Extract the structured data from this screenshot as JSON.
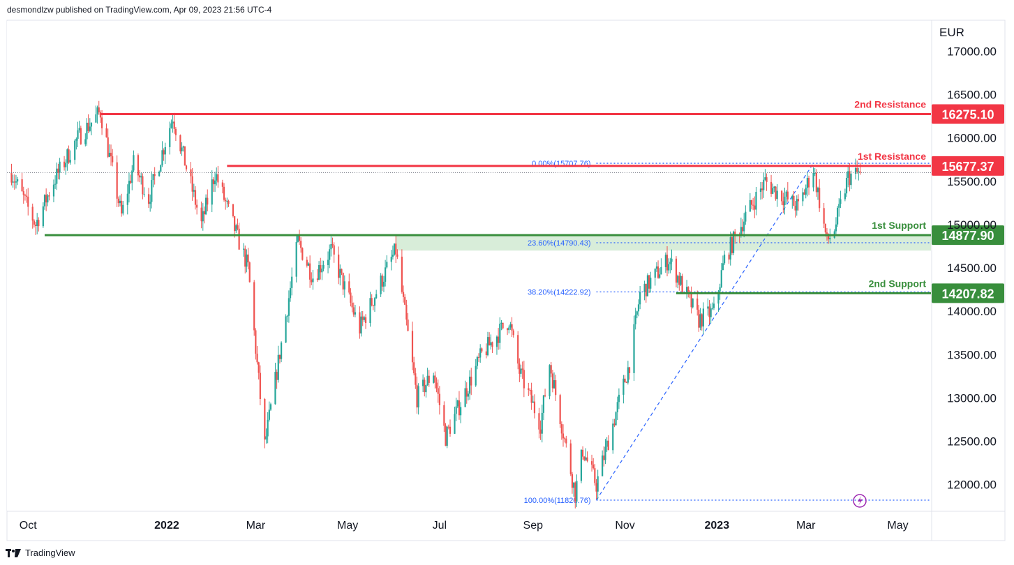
{
  "header": {
    "publisher_line": "desmondlzw published on TradingView.com, Apr 09, 2023 21:56 UTC-4"
  },
  "footer": {
    "brand": "TradingView"
  },
  "colors": {
    "up": "#26a69a",
    "down": "#ef5350",
    "resistance": "#f23645",
    "support": "#388e3c",
    "fib": "#2962ff",
    "zone": "#c8e6c9",
    "grid_border": "#e0e3eb"
  },
  "chart_data": {
    "type": "candlestick",
    "currency": "EUR",
    "ylim": [
      11700,
      17350
    ],
    "y_ticks": [
      "17000.00",
      "16500.00",
      "16000.00",
      "15500.00",
      "15000.00",
      "14500.00",
      "14000.00",
      "13500.00",
      "13000.00",
      "12500.00",
      "12000.00"
    ],
    "x_labels": [
      {
        "label": "Oct",
        "bold": false
      },
      {
        "label": "2022",
        "bold": true
      },
      {
        "label": "Mar",
        "bold": false
      },
      {
        "label": "May",
        "bold": false
      },
      {
        "label": "Jul",
        "bold": false
      },
      {
        "label": "Sep",
        "bold": false
      },
      {
        "label": "Nov",
        "bold": false
      },
      {
        "label": "2023",
        "bold": true
      },
      {
        "label": "Mar",
        "bold": false
      },
      {
        "label": "May",
        "bold": false
      }
    ],
    "price_path": [
      [
        "2021-09-20",
        15600
      ],
      [
        "2021-10-06",
        15000
      ],
      [
        "2021-10-18",
        15500
      ],
      [
        "2021-11-03",
        16000
      ],
      [
        "2021-11-18",
        16300
      ],
      [
        "2021-12-02",
        15100
      ],
      [
        "2021-12-10",
        15700
      ],
      [
        "2021-12-20",
        15300
      ],
      [
        "2022-01-05",
        16250
      ],
      [
        "2022-01-24",
        15000
      ],
      [
        "2022-02-02",
        15600
      ],
      [
        "2022-02-24",
        14500
      ],
      [
        "2022-03-07",
        12450
      ],
      [
        "2022-03-29",
        14800
      ],
      [
        "2022-04-08",
        14400
      ],
      [
        "2022-04-20",
        14700
      ],
      [
        "2022-05-09",
        13800
      ],
      [
        "2022-05-30",
        14600
      ],
      [
        "2022-06-02",
        14700
      ],
      [
        "2022-06-16",
        13000
      ],
      [
        "2022-06-27",
        13300
      ],
      [
        "2022-07-05",
        12550
      ],
      [
        "2022-07-29",
        13500
      ],
      [
        "2022-08-16",
        13900
      ],
      [
        "2022-08-23",
        13300
      ],
      [
        "2022-09-06",
        12700
      ],
      [
        "2022-09-12",
        13400
      ],
      [
        "2022-09-29",
        11900
      ],
      [
        "2022-10-04",
        12400
      ],
      [
        "2022-10-13",
        12000
      ],
      [
        "2022-11-04",
        13400
      ],
      [
        "2022-11-11",
        14200
      ],
      [
        "2022-11-30",
        14600
      ],
      [
        "2022-12-06",
        14400
      ],
      [
        "2022-12-20",
        13900
      ],
      [
        "2022-12-30",
        14000
      ],
      [
        "2023-01-06",
        14600
      ],
      [
        "2023-01-20",
        15100
      ],
      [
        "2023-02-02",
        15500
      ],
      [
        "2023-02-08",
        15400
      ],
      [
        "2023-02-24",
        15200
      ],
      [
        "2023-03-06",
        15650
      ],
      [
        "2023-03-15",
        14800
      ],
      [
        "2023-03-20",
        14950
      ],
      [
        "2023-03-29",
        15550
      ],
      [
        "2023-04-06",
        15600
      ]
    ],
    "last_price": 15600,
    "levels": [
      {
        "name": "2nd Resistance",
        "value": "16275.10",
        "kind": "resistance"
      },
      {
        "name": "1st Resistance",
        "value": "15677.37",
        "kind": "resistance"
      },
      {
        "name": "1st Support",
        "value": "14877.90",
        "kind": "support"
      },
      {
        "name": "2nd Support",
        "value": "14207.82",
        "kind": "support"
      }
    ],
    "support_zone": [
      14700,
      14877.9
    ],
    "fibonacci": [
      {
        "label": "0.00%(15707.76)",
        "price": 15707.76
      },
      {
        "label": "23.60%(14790.43)",
        "price": 14790.43
      },
      {
        "label": "38.20%(14222.92)",
        "price": 14222.92
      },
      {
        "label": "100.00%(11820.76)",
        "price": 11820.76
      }
    ],
    "trendline": {
      "from": [
        "2022-10-13",
        11820.76
      ],
      "to": [
        "2023-03-06",
        15707.76
      ]
    }
  }
}
